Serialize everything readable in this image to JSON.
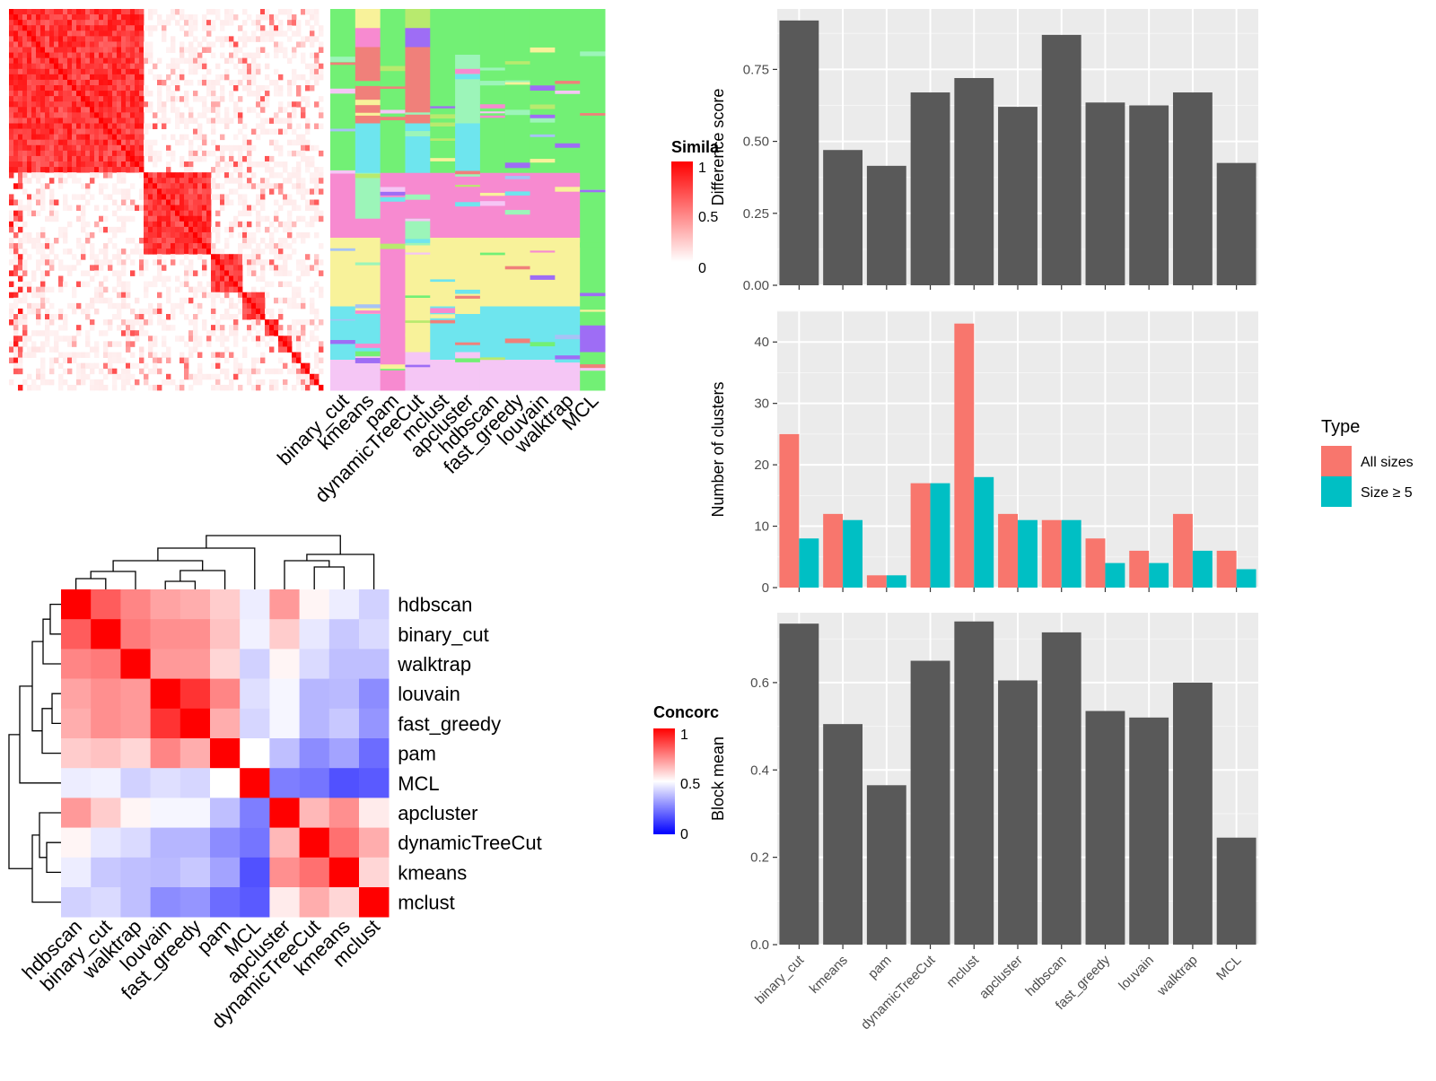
{
  "colors": {
    "red": "#ff0000",
    "white": "#ffffff",
    "blue": "#0000ff",
    "bar_fill": "#595959",
    "panel_bg": "#ebebeb",
    "all_sizes": "#f8766d",
    "size5": "#00bfc4",
    "cluster_palette": [
      "#72f075",
      "#f78ad0",
      "#f8f29a",
      "#6ee5ee",
      "#f0807a",
      "#9cf5b9",
      "#f5c6f5",
      "#a6c3f5",
      "#b8ea6e",
      "#9e6df5"
    ]
  },
  "similarity_heatmap": {
    "legend_title": "Simila",
    "legend_ticks": [
      "1",
      "0.5",
      "0"
    ],
    "method_labels": [
      "binary_cut",
      "kmeans",
      "pam",
      "dynamicTreeCut",
      "mclust",
      "apcluster",
      "hdbscan",
      "fast_greedy",
      "louvain",
      "walktrap",
      "MCL"
    ]
  },
  "concordance_heatmap": {
    "legend_title": "Concorc",
    "legend_ticks": [
      "1",
      "0.5",
      "0"
    ],
    "row_labels": [
      "hdbscan",
      "binary_cut",
      "walktrap",
      "louvain",
      "fast_greedy",
      "pam",
      "MCL",
      "apcluster",
      "dynamicTreeCut",
      "kmeans",
      "mclust"
    ],
    "col_labels": [
      "hdbscan",
      "binary_cut",
      "walktrap",
      "louvain",
      "fast_greedy",
      "pam",
      "MCL",
      "apcluster",
      "dynamicTreeCut",
      "kmeans",
      "mclust"
    ],
    "matrix": [
      [
        1.0,
        0.82,
        0.74,
        0.68,
        0.66,
        0.6,
        0.46,
        0.7,
        0.52,
        0.46,
        0.4
      ],
      [
        0.82,
        1.0,
        0.76,
        0.72,
        0.72,
        0.62,
        0.47,
        0.6,
        0.45,
        0.38,
        0.42
      ],
      [
        0.74,
        0.76,
        1.0,
        0.7,
        0.7,
        0.58,
        0.4,
        0.52,
        0.42,
        0.36,
        0.36
      ],
      [
        0.68,
        0.72,
        0.7,
        1.0,
        0.9,
        0.74,
        0.43,
        0.48,
        0.34,
        0.35,
        0.25
      ],
      [
        0.66,
        0.72,
        0.7,
        0.9,
        1.0,
        0.66,
        0.41,
        0.48,
        0.34,
        0.38,
        0.27
      ],
      [
        0.6,
        0.62,
        0.58,
        0.74,
        0.66,
        1.0,
        0.5,
        0.36,
        0.25,
        0.3,
        0.18
      ],
      [
        0.46,
        0.47,
        0.4,
        0.43,
        0.41,
        0.5,
        1.0,
        0.22,
        0.2,
        0.12,
        0.14
      ],
      [
        0.7,
        0.6,
        0.52,
        0.48,
        0.48,
        0.36,
        0.22,
        1.0,
        0.64,
        0.72,
        0.54
      ],
      [
        0.52,
        0.45,
        0.42,
        0.34,
        0.34,
        0.25,
        0.2,
        0.64,
        1.0,
        0.78,
        0.66
      ],
      [
        0.46,
        0.38,
        0.36,
        0.35,
        0.38,
        0.3,
        0.12,
        0.72,
        0.78,
        1.0,
        0.58
      ],
      [
        0.4,
        0.42,
        0.36,
        0.25,
        0.27,
        0.18,
        0.14,
        0.54,
        0.66,
        0.58,
        1.0
      ]
    ]
  },
  "chart_data": [
    {
      "type": "bar",
      "categories": [
        "binary_cut",
        "kmeans",
        "pam",
        "dynamicTreeCut",
        "mclust",
        "apcluster",
        "hdbscan",
        "fast_greedy",
        "louvain",
        "walktrap",
        "MCL"
      ],
      "values": [
        0.92,
        0.47,
        0.415,
        0.67,
        0.72,
        0.62,
        0.87,
        0.635,
        0.625,
        0.67,
        0.425
      ],
      "ylabel": "Difference score",
      "ylim": [
        0,
        0.96
      ],
      "yticks": [
        "0.00",
        "0.25",
        "0.50",
        "0.75"
      ],
      "ytick_values": [
        0,
        0.25,
        0.5,
        0.75
      ],
      "grid": true
    },
    {
      "type": "bar",
      "categories": [
        "binary_cut",
        "kmeans",
        "pam",
        "dynamicTreeCut",
        "mclust",
        "apcluster",
        "hdbscan",
        "fast_greedy",
        "louvain",
        "walktrap",
        "MCL"
      ],
      "series": [
        {
          "name": "All sizes",
          "values": [
            25,
            12,
            2,
            17,
            43,
            12,
            11,
            8,
            6,
            12,
            6
          ]
        },
        {
          "name": "Size ≥ 5",
          "values": [
            8,
            11,
            2,
            17,
            18,
            11,
            11,
            4,
            4,
            6,
            3
          ]
        }
      ],
      "ylabel": "Number of clusters",
      "ylim": [
        0,
        45
      ],
      "yticks": [
        "0",
        "10",
        "20",
        "30",
        "40"
      ],
      "ytick_values": [
        0,
        10,
        20,
        30,
        40
      ],
      "legend_title": "Type",
      "legend_position": "right",
      "grid": true
    },
    {
      "type": "bar",
      "categories": [
        "binary_cut",
        "kmeans",
        "pam",
        "dynamicTreeCut",
        "mclust",
        "apcluster",
        "hdbscan",
        "fast_greedy",
        "louvain",
        "walktrap",
        "MCL"
      ],
      "values": [
        0.735,
        0.505,
        0.365,
        0.65,
        0.74,
        0.605,
        0.715,
        0.535,
        0.52,
        0.6,
        0.245
      ],
      "ylabel": "Block mean",
      "ylim": [
        0,
        0.76
      ],
      "yticks": [
        "0.0",
        "0.2",
        "0.4",
        "0.6"
      ],
      "ytick_values": [
        0,
        0.2,
        0.4,
        0.6
      ],
      "grid": true
    }
  ]
}
